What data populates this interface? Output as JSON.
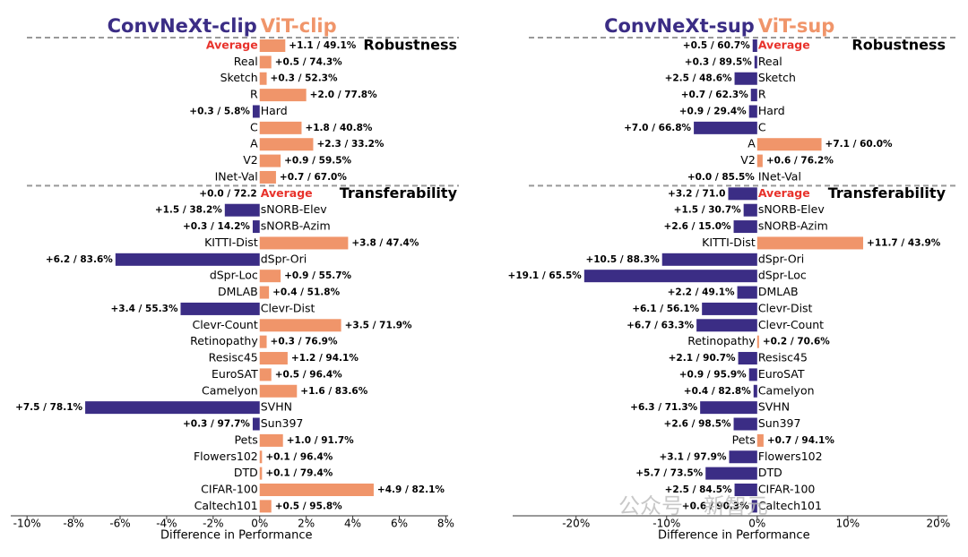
{
  "chart_data": [
    {
      "type": "bar",
      "models": [
        {
          "name": "ConvNeXt-clip",
          "color": "#3b2d85"
        },
        {
          "name": "ViT-clip",
          "color": "#f0956a"
        }
      ],
      "sections": [
        {
          "title": "Robustness",
          "categories": [
            "Average",
            "Real",
            "Sketch",
            "R",
            "Hard",
            "C",
            "A",
            "V2",
            "INet-Val"
          ],
          "values": [
            1.1,
            0.5,
            0.3,
            2.0,
            -0.3,
            1.8,
            2.3,
            0.9,
            0.7
          ],
          "value_labels": [
            "+1.1 / 49.1%",
            "+0.5 / 74.3%",
            "+0.3 / 52.3%",
            "+2.0 / 77.8%",
            "+0.3 / 5.8%",
            "+1.8 / 40.8%",
            "+2.3 / 33.2%",
            "+0.9 / 59.5%",
            "+0.7 / 67.0%"
          ]
        },
        {
          "title": "Transferability",
          "categories": [
            "Average",
            "sNORB-Elev",
            "sNORB-Azim",
            "KITTI-Dist",
            "dSpr-Ori",
            "dSpr-Loc",
            "DMLAB",
            "Clevr-Dist",
            "Clevr-Count",
            "Retinopathy",
            "Resisc45",
            "EuroSAT",
            "Camelyon",
            "SVHN",
            "Sun397",
            "Pets",
            "Flowers102",
            "DTD",
            "CIFAR-100",
            "Caltech101"
          ],
          "values": [
            0.0,
            -1.5,
            -0.3,
            3.8,
            -6.2,
            0.9,
            0.4,
            -3.4,
            3.5,
            0.3,
            1.2,
            0.5,
            1.6,
            -7.5,
            -0.3,
            1.0,
            0.1,
            0.1,
            4.9,
            0.5
          ],
          "value_labels": [
            "+0.0 / 72.2",
            "+1.5 / 38.2%",
            "+0.3 / 14.2%",
            "+3.8 / 47.4%",
            "+6.2 / 83.6%",
            "+0.9 / 55.7%",
            "+0.4 / 51.8%",
            "+3.4 / 55.3%",
            "+3.5 / 71.9%",
            "+0.3 / 76.9%",
            "+1.2 / 94.1%",
            "+0.5 / 96.4%",
            "+1.6 / 83.6%",
            "+7.5 / 78.1%",
            "+0.3 / 97.7%",
            "+1.0 / 91.7%",
            "+0.1 / 96.4%",
            "+0.1 / 79.4%",
            "+4.9 / 82.1%",
            "+0.5 / 95.8%"
          ]
        }
      ],
      "xlabel": "Difference in Performance",
      "xlim": [
        -10.7,
        8.1
      ],
      "xticks": [
        {
          "value": -10,
          "label": "-10%"
        },
        {
          "value": -8,
          "label": "-8%"
        },
        {
          "value": -6,
          "label": "-6%"
        },
        {
          "value": -4,
          "label": "-4%"
        },
        {
          "value": -2,
          "label": "-2%"
        },
        {
          "value": 0,
          "label": "0%"
        },
        {
          "value": 2,
          "label": "2%"
        },
        {
          "value": 4,
          "label": "4%"
        },
        {
          "value": 6,
          "label": "6%"
        },
        {
          "value": 8,
          "label": "8%"
        }
      ]
    },
    {
      "type": "bar",
      "models": [
        {
          "name": "ConvNeXt-sup",
          "color": "#3b2d85"
        },
        {
          "name": "ViT-sup",
          "color": "#f0956a"
        }
      ],
      "sections": [
        {
          "title": "Robustness",
          "categories": [
            "Average",
            "Real",
            "Sketch",
            "R",
            "Hard",
            "C",
            "A",
            "V2",
            "INet-Val"
          ],
          "values": [
            -0.5,
            -0.3,
            -2.5,
            -0.7,
            -0.9,
            -7.0,
            7.1,
            0.6,
            0.0
          ],
          "value_labels": [
            "+0.5 / 60.7%",
            "+0.3 / 89.5%",
            "+2.5 / 48.6%",
            "+0.7 / 62.3%",
            "+0.9 / 29.4%",
            "+7.0 / 66.8%",
            "+7.1 / 60.0%",
            "+0.6 / 76.2%",
            "+0.0 / 85.5%"
          ]
        },
        {
          "title": "Transferability",
          "categories": [
            "Average",
            "sNORB-Elev",
            "sNORB-Azim",
            "KITTI-Dist",
            "dSpr-Ori",
            "dSpr-Loc",
            "DMLAB",
            "Clevr-Dist",
            "Clevr-Count",
            "Retinopathy",
            "Resisc45",
            "EuroSAT",
            "Camelyon",
            "SVHN",
            "Sun397",
            "Pets",
            "Flowers102",
            "DTD",
            "CIFAR-100",
            "Caltech101"
          ],
          "values": [
            -3.2,
            -1.5,
            -2.6,
            11.7,
            -10.5,
            -19.1,
            -2.2,
            -6.1,
            -6.7,
            0.2,
            -2.1,
            -0.9,
            -0.4,
            -6.3,
            -2.6,
            0.7,
            -3.1,
            -5.7,
            -2.5,
            -0.6
          ],
          "value_labels": [
            "+3.2 / 71.0",
            "+1.5 / 30.7%",
            "+2.6 / 15.0%",
            "+11.7 / 43.9%",
            "+10.5 / 88.3%",
            "+19.1 / 65.5%",
            "+2.2 / 49.1%",
            "+6.1 / 56.1%",
            "+6.7 / 63.3%",
            "+0.2 / 70.6%",
            "+2.1 / 90.7%",
            "+0.9 / 95.9%",
            "+0.4 / 82.8%",
            "+6.3 / 71.3%",
            "+2.6 / 98.5%",
            "+0.7 / 94.1%",
            "+3.1 / 97.9%",
            "+5.7 / 73.5%",
            "+2.5 / 84.5%",
            "+0.6 / 90.3%"
          ]
        }
      ],
      "xlabel": "Difference in Performance",
      "xlim": [
        -27,
        21
      ],
      "xticks": [
        {
          "value": -20,
          "label": "-20%"
        },
        {
          "value": -10,
          "label": "-10%"
        },
        {
          "value": 0,
          "label": "0%"
        },
        {
          "value": 10,
          "label": "10%"
        },
        {
          "value": 20,
          "label": "20%"
        }
      ]
    }
  ],
  "watermark": "公众号 · 新智元"
}
